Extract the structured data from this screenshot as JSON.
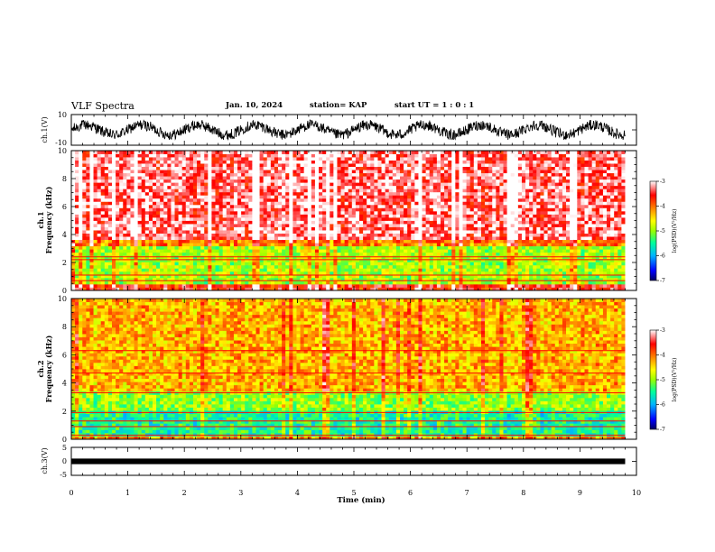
{
  "header": {
    "title": "VLF Spectra",
    "date": "Jan. 10, 2024",
    "station": "station= KAP",
    "start": "start  UT =  1 : 0  : 1"
  },
  "chart_data": [
    {
      "type": "line",
      "panel": "ch1-waveform",
      "ylabel": "ch.1(V)",
      "ylim": [
        -10,
        10
      ],
      "yticks": [
        "10",
        "-10"
      ],
      "xlim": [
        0,
        10
      ],
      "trace_range": [
        0,
        9.8
      ],
      "series": [
        {
          "slow_oscillation_cycles": 10,
          "amplitude_range_v": [
            -7,
            7
          ]
        }
      ]
    },
    {
      "type": "heatmap",
      "panel": "ch1-spectrogram",
      "ylabel": "ch.1\nFrequency (kHz)",
      "ylabel_line1": "ch.1",
      "ylabel_line2": "Frequency (kHz)",
      "ylim": [
        0,
        10
      ],
      "yticks": [
        "0",
        "2",
        "4",
        "6",
        "8",
        "10"
      ],
      "xlim": [
        0,
        10
      ],
      "data_range": [
        0,
        9.8
      ],
      "bands": [
        {
          "f_range": [
            3.7,
            10.0
          ],
          "log_psd": -3.3
        },
        {
          "f_range": [
            3.2,
            3.7
          ],
          "log_psd": -4.1
        },
        {
          "f_range": [
            0.5,
            3.2
          ],
          "log_psd": -4.9
        },
        {
          "f_range": [
            0.0,
            0.5
          ],
          "log_psd": -3.6
        }
      ],
      "lines_khz": [
        2.2,
        2.4,
        1.1,
        0.7
      ],
      "colorbar": {
        "label": "log(PSD)(V²/Hz)",
        "range": [
          -7,
          -3
        ],
        "ticks": [
          "-3",
          "-4",
          "-5",
          "-6",
          "-7"
        ]
      }
    },
    {
      "type": "heatmap",
      "panel": "ch2-spectrogram",
      "ylabel": "ch.2\nFrequency (kHz)",
      "ylabel_line1": "ch.2",
      "ylabel_line2": "Frequency (kHz)",
      "ylim": [
        0,
        10
      ],
      "yticks": [
        "0",
        "2",
        "4",
        "6",
        "8",
        "10"
      ],
      "xlim": [
        0,
        10
      ],
      "data_range": [
        0,
        9.8
      ],
      "bands": [
        {
          "f_range": [
            3.5,
            10.0
          ],
          "log_psd": -4.3
        },
        {
          "f_range": [
            2.0,
            3.5
          ],
          "log_psd": -5.0
        },
        {
          "f_range": [
            0.3,
            2.0
          ],
          "log_psd": -5.5
        },
        {
          "f_range": [
            0.0,
            0.3
          ],
          "log_psd": -4.2
        }
      ],
      "lines_khz": [
        6.3,
        4.7,
        3.3,
        1.9,
        1.3,
        0.9,
        0.3
      ],
      "colorbar": {
        "label": "log(PSD)(V²/Hz)",
        "range": [
          -7,
          -3
        ],
        "ticks": [
          "-3",
          "-4",
          "-5",
          "-6",
          "-7"
        ]
      }
    },
    {
      "type": "line",
      "panel": "ch3-waveform",
      "ylabel": "ch.3(V)",
      "ylim": [
        -5,
        5
      ],
      "yticks": [
        "5",
        "0",
        "-5"
      ],
      "xlim": [
        0,
        10
      ],
      "series": [
        {
          "level_v": 0.0,
          "band_half_width_v": 0.25,
          "x_range": [
            0,
            9.8
          ]
        }
      ]
    }
  ],
  "xaxis": {
    "label": "Time (min)",
    "ticks": [
      "0",
      "1",
      "2",
      "3",
      "4",
      "5",
      "6",
      "7",
      "8",
      "9",
      "10"
    ]
  },
  "colors": {
    "colormap": [
      "#000060",
      "#0000ff",
      "#00b4ff",
      "#00ff9a",
      "#9aff00",
      "#ffff00",
      "#ff8c00",
      "#ff0000",
      "#ffffff"
    ]
  }
}
